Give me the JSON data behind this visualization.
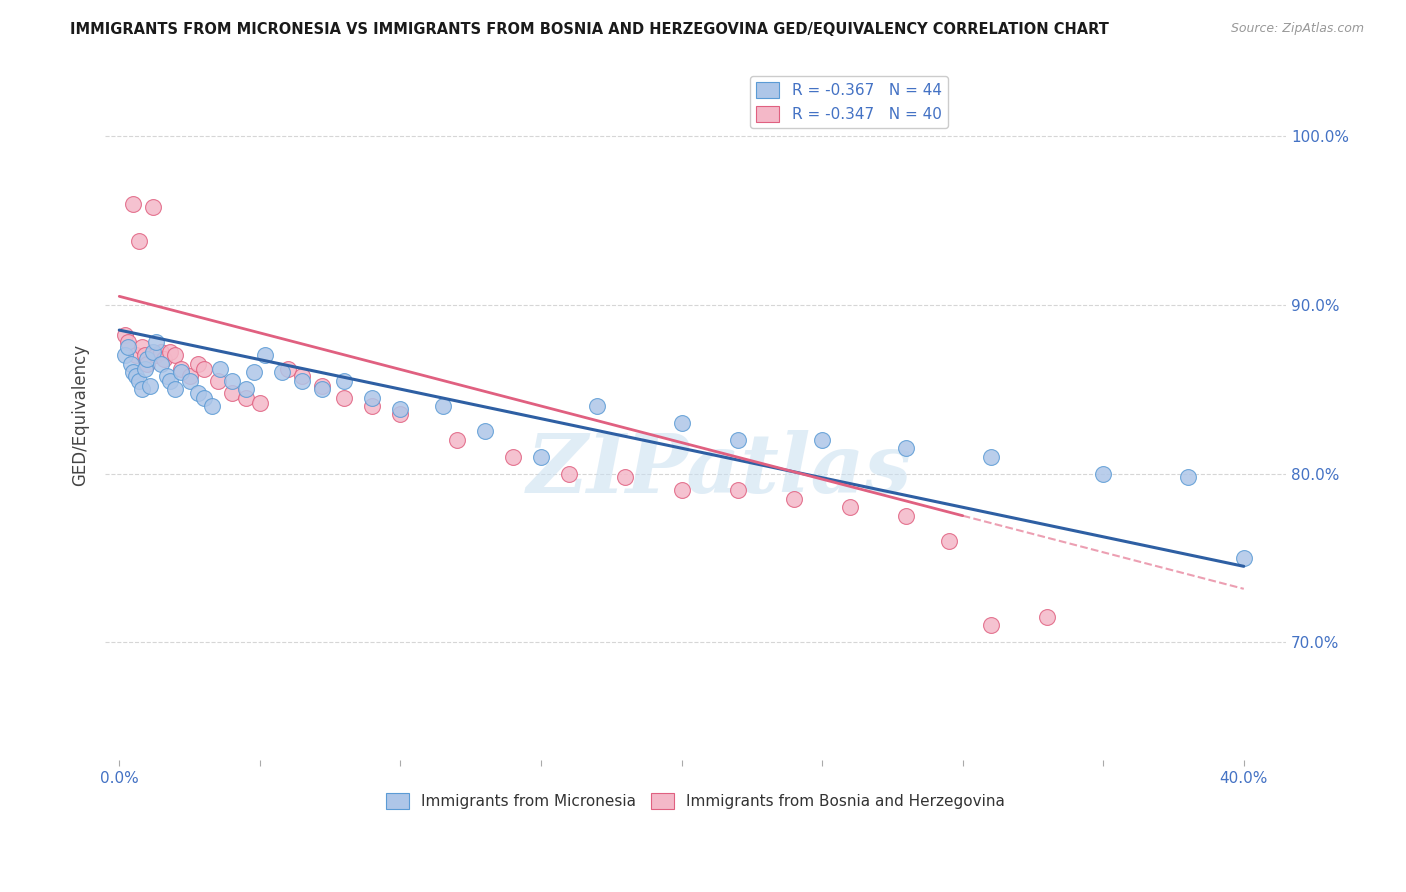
{
  "title": "IMMIGRANTS FROM MICRONESIA VS IMMIGRANTS FROM BOSNIA AND HERZEGOVINA GED/EQUIVALENCY CORRELATION CHART",
  "source": "Source: ZipAtlas.com",
  "ylabel": "GED/Equivalency",
  "y_tick_labels": [
    "70.0%",
    "80.0%",
    "90.0%",
    "100.0%"
  ],
  "y_tick_values": [
    0.7,
    0.8,
    0.9,
    1.0
  ],
  "xlim": [
    -0.005,
    0.415
  ],
  "ylim": [
    0.63,
    1.04
  ],
  "legend_label1": "Immigrants from Micronesia",
  "legend_label2": "Immigrants from Bosnia and Herzegovina",
  "legend_R1": "R = -0.367",
  "legend_N1": "N = 44",
  "legend_R2": "R = -0.347",
  "legend_N2": "N = 40",
  "color_micronesia_fill": "#aec6e8",
  "color_micronesia_edge": "#5b9bd5",
  "color_bosnia_fill": "#f4b8c8",
  "color_bosnia_edge": "#e06080",
  "color_blue_line": "#2e5fa3",
  "color_pink_line": "#e06080",
  "color_grid": "#cccccc",
  "color_axis_labels": "#4472c4",
  "watermark_text": "ZIPatlas",
  "watermark_color": "#c8dff0",
  "mic_line_x0": 0.0,
  "mic_line_x1": 0.4,
  "mic_line_y0": 0.885,
  "mic_line_y1": 0.745,
  "bos_line_x0": 0.0,
  "bos_line_x1": 0.3,
  "bos_line_y0": 0.905,
  "bos_line_y1": 0.775,
  "mic_x": [
    0.002,
    0.003,
    0.004,
    0.005,
    0.006,
    0.007,
    0.008,
    0.009,
    0.01,
    0.011,
    0.012,
    0.013,
    0.015,
    0.017,
    0.018,
    0.02,
    0.022,
    0.025,
    0.028,
    0.03,
    0.033,
    0.036,
    0.04,
    0.045,
    0.048,
    0.052,
    0.058,
    0.065,
    0.072,
    0.08,
    0.09,
    0.1,
    0.115,
    0.13,
    0.15,
    0.17,
    0.2,
    0.22,
    0.25,
    0.28,
    0.31,
    0.35,
    0.38,
    0.4
  ],
  "mic_y": [
    0.87,
    0.875,
    0.865,
    0.86,
    0.858,
    0.855,
    0.85,
    0.862,
    0.868,
    0.852,
    0.872,
    0.878,
    0.865,
    0.858,
    0.855,
    0.85,
    0.86,
    0.855,
    0.848,
    0.845,
    0.84,
    0.862,
    0.855,
    0.85,
    0.86,
    0.87,
    0.86,
    0.855,
    0.85,
    0.855,
    0.845,
    0.838,
    0.84,
    0.825,
    0.81,
    0.84,
    0.83,
    0.82,
    0.82,
    0.815,
    0.81,
    0.8,
    0.798,
    0.75
  ],
  "bos_x": [
    0.002,
    0.003,
    0.005,
    0.006,
    0.007,
    0.008,
    0.009,
    0.01,
    0.012,
    0.013,
    0.015,
    0.016,
    0.018,
    0.02,
    0.022,
    0.025,
    0.028,
    0.03,
    0.035,
    0.04,
    0.045,
    0.05,
    0.06,
    0.065,
    0.072,
    0.08,
    0.09,
    0.1,
    0.12,
    0.14,
    0.16,
    0.18,
    0.2,
    0.22,
    0.24,
    0.26,
    0.28,
    0.295,
    0.31,
    0.33
  ],
  "bos_y": [
    0.882,
    0.878,
    0.96,
    0.87,
    0.938,
    0.875,
    0.87,
    0.865,
    0.958,
    0.87,
    0.872,
    0.868,
    0.872,
    0.87,
    0.862,
    0.858,
    0.865,
    0.862,
    0.855,
    0.848,
    0.845,
    0.842,
    0.862,
    0.858,
    0.852,
    0.845,
    0.84,
    0.835,
    0.82,
    0.81,
    0.8,
    0.798,
    0.79,
    0.79,
    0.785,
    0.78,
    0.775,
    0.76,
    0.71,
    0.715
  ]
}
